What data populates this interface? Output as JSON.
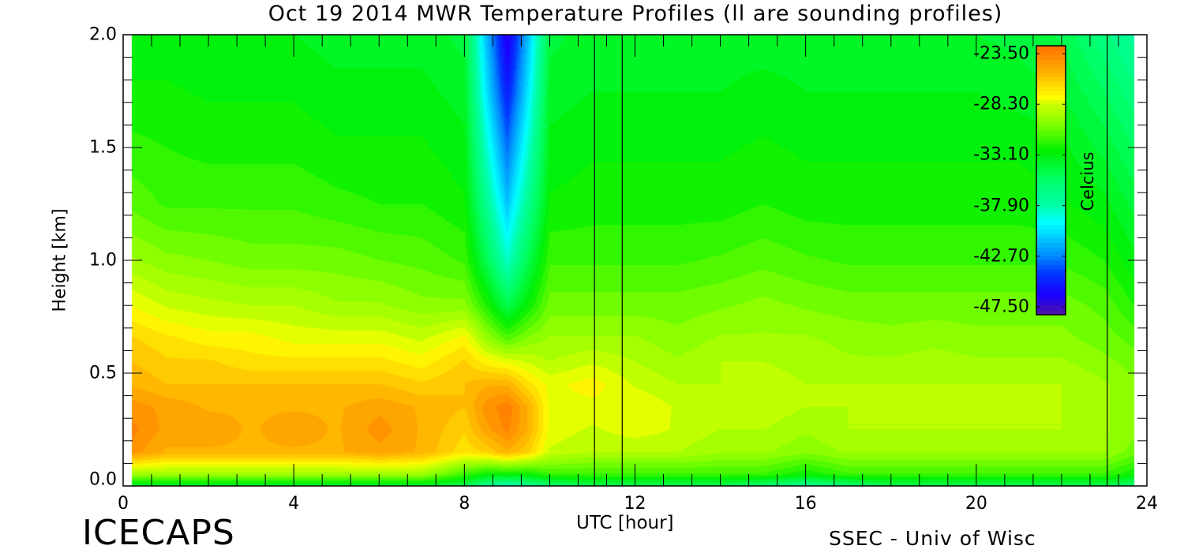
{
  "chart_data": {
    "type": "heatmap",
    "title": "Oct 19 2014 MWR Temperature Profiles (ll are sounding profiles)",
    "xlabel": "UTC [hour]",
    "ylabel": "Height [km]",
    "xlim": [
      0,
      24
    ],
    "ylim": [
      0,
      2.0
    ],
    "x_ticks": [
      "0",
      "4",
      "8",
      "12",
      "16",
      "20",
      "24"
    ],
    "y_ticks": [
      "0.0",
      "0.5",
      "1.0",
      "1.5",
      "2.0"
    ],
    "colorbar": {
      "label": "Celcius",
      "range": [
        -47.5,
        -23.5
      ],
      "ticks": [
        "-23.50",
        "-28.30",
        "-33.10",
        "-37.90",
        "-42.70",
        "-47.50"
      ]
    },
    "sounding_times_hour": [
      11.05,
      11.7,
      23.07
    ],
    "data_x_extent_hour": [
      0.2,
      23.7
    ],
    "grid_hours": [
      0.2,
      1,
      2,
      3,
      4,
      5,
      6,
      7,
      8,
      8.5,
      9,
      9.5,
      10,
      11,
      12,
      13,
      14,
      15,
      16,
      17,
      18,
      19,
      20,
      21,
      22,
      23,
      23.7
    ],
    "grid_heights_km": [
      0,
      0.05,
      0.15,
      0.25,
      0.35,
      0.45,
      0.55,
      0.65,
      0.8,
      1.0,
      1.25,
      1.5,
      1.75,
      2.0
    ],
    "temperature_c": [
      [
        -34,
        -34,
        -34,
        -34,
        -34,
        -34,
        -34,
        -34,
        -35,
        -37,
        -38,
        -37,
        -36,
        -35,
        -35,
        -35,
        -35,
        -36,
        -37,
        -36,
        -35,
        -35,
        -35,
        -35,
        -35,
        -35,
        -36
      ],
      [
        -30,
        -30,
        -30,
        -30,
        -30,
        -30,
        -30,
        -30,
        -32,
        -33,
        -33,
        -33,
        -32,
        -32,
        -32,
        -32,
        -32,
        -32,
        -33,
        -32,
        -32,
        -32,
        -32,
        -32,
        -32,
        -32,
        -33
      ],
      [
        -25,
        -26,
        -26,
        -26,
        -26,
        -26,
        -25.5,
        -26,
        -27.5,
        -27,
        -26,
        -27,
        -29,
        -29.5,
        -29.5,
        -29.5,
        -30,
        -30,
        -30.5,
        -30,
        -30,
        -30,
        -30,
        -30,
        -30,
        -30,
        -31
      ],
      [
        -24.5,
        -25.5,
        -25.5,
        -26,
        -25.5,
        -26,
        -25,
        -26,
        -27,
        -25.5,
        -24.5,
        -26,
        -28.5,
        -29,
        -28.5,
        -29,
        -29.5,
        -29.5,
        -30,
        -29.5,
        -29.5,
        -29.5,
        -29.5,
        -29.5,
        -29.5,
        -30,
        -30.5
      ],
      [
        -25,
        -25.5,
        -26,
        -26,
        -26,
        -26,
        -25.5,
        -26,
        -26.5,
        -25,
        -24.3,
        -26,
        -28.5,
        -28.5,
        -28.3,
        -29,
        -29.5,
        -29,
        -29.5,
        -29.5,
        -29.5,
        -29.5,
        -29.5,
        -29.5,
        -29.5,
        -30,
        -30.5
      ],
      [
        -26,
        -26.5,
        -26.5,
        -26.5,
        -26.5,
        -26.5,
        -26.5,
        -27,
        -26.5,
        -26,
        -26,
        -27.5,
        -28.5,
        -28,
        -29,
        -29.5,
        -29.5,
        -29.2,
        -29.5,
        -29.5,
        -29.5,
        -29.5,
        -29.5,
        -29.5,
        -29.5,
        -30,
        -30.5
      ],
      [
        -26.5,
        -27,
        -27,
        -27.5,
        -27.5,
        -27.5,
        -27.5,
        -28,
        -27,
        -28,
        -28.5,
        -29,
        -29.5,
        -29,
        -29.5,
        -30,
        -29.5,
        -29.5,
        -29.7,
        -30,
        -30,
        -29.8,
        -30,
        -30,
        -30,
        -30.5,
        -31
      ],
      [
        -27,
        -27.5,
        -28,
        -28,
        -28.5,
        -28.5,
        -28.5,
        -29,
        -28,
        -30,
        -31.5,
        -30.5,
        -30,
        -30,
        -30,
        -30.5,
        -30,
        -30,
        -30,
        -30.3,
        -30.5,
        -30.3,
        -30.5,
        -30.5,
        -30.5,
        -31,
        -31.5
      ],
      [
        -28.3,
        -29,
        -29.3,
        -29.5,
        -29.5,
        -30,
        -30,
        -30.5,
        -30.5,
        -32.5,
        -35,
        -33,
        -31,
        -31,
        -31,
        -31,
        -30.8,
        -30.5,
        -30.8,
        -31,
        -31,
        -31,
        -31,
        -31,
        -31,
        -31.5,
        -32.5
      ],
      [
        -30,
        -30.5,
        -30.7,
        -31,
        -31,
        -31,
        -31.3,
        -31.5,
        -32,
        -35,
        -38.5,
        -35,
        -32,
        -32,
        -32,
        -32,
        -31.8,
        -31.5,
        -31.8,
        -32,
        -32,
        -32,
        -32,
        -32,
        -32,
        -32.5,
        -33.5
      ],
      [
        -31.5,
        -32,
        -32,
        -32,
        -32,
        -32.3,
        -32.5,
        -32.5,
        -33,
        -37,
        -41,
        -37,
        -33,
        -32.8,
        -32.8,
        -32.8,
        -32.8,
        -32.5,
        -32.8,
        -32.8,
        -32.8,
        -32.8,
        -32.8,
        -32.8,
        -33,
        -33.5,
        -34.5
      ],
      [
        -32.3,
        -32.5,
        -32.7,
        -32.7,
        -32.7,
        -33,
        -33,
        -33,
        -33.5,
        -38.5,
        -43,
        -38.5,
        -33.5,
        -33.2,
        -33.2,
        -33.2,
        -33.2,
        -33,
        -33.2,
        -33.2,
        -33.2,
        -33.2,
        -33.2,
        -33.2,
        -33.5,
        -34.5,
        -35.5
      ],
      [
        -33,
        -33,
        -33.2,
        -33.2,
        -33.2,
        -33.5,
        -33.5,
        -33.5,
        -34,
        -40,
        -45,
        -40,
        -34,
        -33.7,
        -33.7,
        -33.7,
        -33.7,
        -33.5,
        -33.7,
        -33.7,
        -33.7,
        -33.7,
        -33.7,
        -34,
        -34.3,
        -35.5,
        -36.5
      ],
      [
        -33.5,
        -33.5,
        -33.7,
        -33.7,
        -33.7,
        -34,
        -34,
        -34,
        -34.5,
        -41,
        -46.5,
        -41,
        -34.5,
        -34,
        -34,
        -34,
        -34,
        -34,
        -34,
        -34,
        -34,
        -34.2,
        -34.3,
        -34.5,
        -35,
        -36.5,
        -37.5
      ]
    ],
    "colormap": [
      [
        -47.5,
        "#4a10b0"
      ],
      [
        -46,
        "#1a00ff"
      ],
      [
        -44,
        "#0038ff"
      ],
      [
        -42.7,
        "#0080ff"
      ],
      [
        -40.5,
        "#00d8ff"
      ],
      [
        -39.5,
        "#00ffff"
      ],
      [
        -37.9,
        "#00ffa8"
      ],
      [
        -35.5,
        "#00ff60"
      ],
      [
        -33.1,
        "#00f000"
      ],
      [
        -30.7,
        "#80ff00"
      ],
      [
        -28.8,
        "#d0ff00"
      ],
      [
        -28.3,
        "#ffff00"
      ],
      [
        -26,
        "#ffb000"
      ],
      [
        -23.5,
        "#ff6a00"
      ]
    ]
  },
  "footer": {
    "logo": "ICECAPS",
    "credit": "SSEC - Univ of Wisc"
  }
}
